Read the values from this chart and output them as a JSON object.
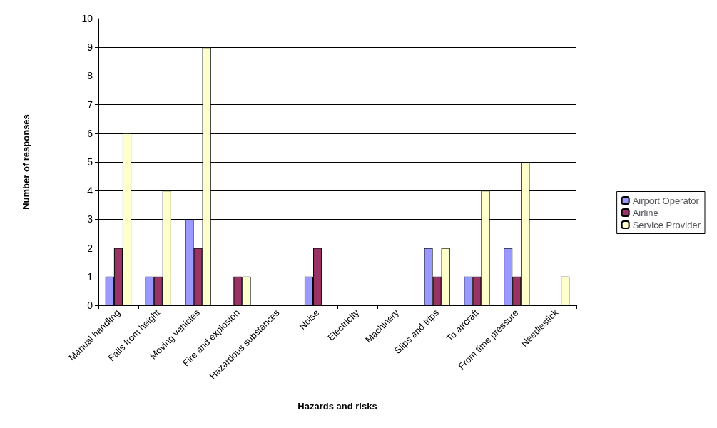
{
  "chart_data": {
    "type": "bar",
    "xlabel": "Hazards and risks",
    "ylabel": "Number of responses",
    "categories": [
      "Manual handling",
      "Falls from height",
      "Moving vehicles",
      "Fire and explosion",
      "Hazardous substances",
      "Noise",
      "Electricity",
      "Machinery",
      "Slips and trips",
      "To aircraft",
      "From time pressure",
      "Needlestick"
    ],
    "series": [
      {
        "name": "Airport Operator",
        "color": "#9999ff",
        "values": [
          1,
          1,
          3,
          0,
          0,
          1,
          0,
          0,
          2,
          1,
          2,
          0
        ]
      },
      {
        "name": "Airline",
        "color": "#993366",
        "values": [
          2,
          1,
          2,
          1,
          0,
          2,
          0,
          0,
          1,
          1,
          1,
          0
        ]
      },
      {
        "name": "Service Provider",
        "color": "#ffffcc",
        "values": [
          6,
          4,
          9,
          1,
          0,
          0,
          0,
          0,
          2,
          4,
          5,
          1
        ]
      }
    ],
    "ylim": [
      0,
      10
    ],
    "yticks": [
      0,
      1,
      2,
      3,
      4,
      5,
      6,
      7,
      8,
      9,
      10
    ],
    "grid": "y",
    "legend": "right"
  }
}
